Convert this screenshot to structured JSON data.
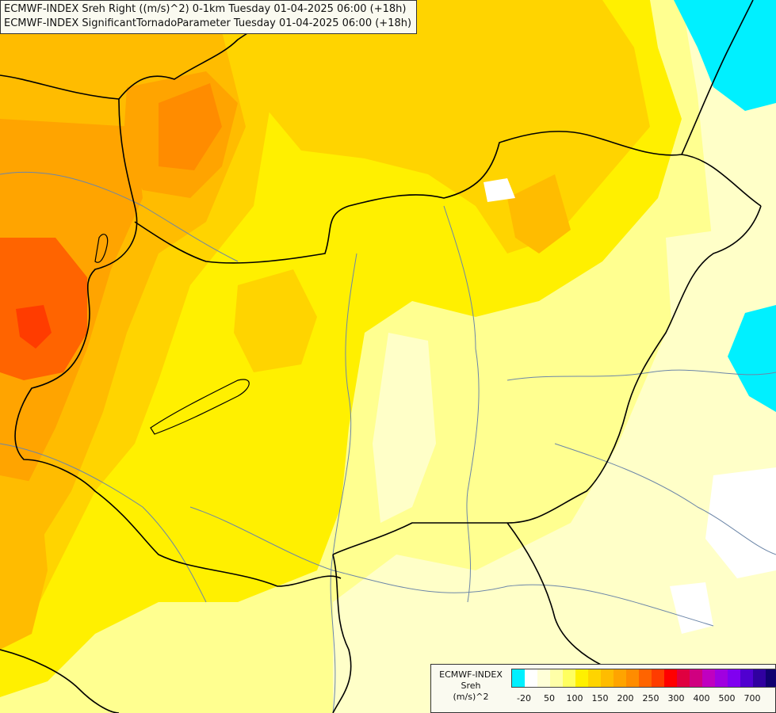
{
  "header": {
    "line1": "ECMWF-INDEX Sreh Right ((m/s)^2) 0-1km Tuesday 01-04-2025 06:00 (+18h)",
    "line2": "ECMWF-INDEX SignificantTornadoParameter Tuesday 01-04-2025 06:00 (+18h)"
  },
  "legend": {
    "source": "ECMWF-INDEX",
    "variable": "Sreh",
    "unit": "(m/s)^2",
    "colors": [
      "#00f0ff",
      "#ffffff",
      "#ffffd8",
      "#ffffa8",
      "#ffff60",
      "#fff000",
      "#ffd400",
      "#ffbc00",
      "#ffa400",
      "#ff8c00",
      "#ff6400",
      "#ff3c00",
      "#ff0000",
      "#e00040",
      "#d00080",
      "#c000c0",
      "#a000e0",
      "#8000f0",
      "#5000d0",
      "#3000a0",
      "#100070"
    ],
    "ticks": [
      {
        "label": "-20",
        "index": 1
      },
      {
        "label": "50",
        "index": 3
      },
      {
        "label": "100",
        "index": 5
      },
      {
        "label": "150",
        "index": 7
      },
      {
        "label": "200",
        "index": 9
      },
      {
        "label": "250",
        "index": 11
      },
      {
        "label": "300",
        "index": 13
      },
      {
        "label": "400",
        "index": 15
      },
      {
        "label": "500",
        "index": 17
      },
      {
        "label": "700",
        "index": 19
      }
    ]
  },
  "map_colors": {
    "background": "#ffffc8",
    "yellow_light": "#ffff90",
    "yellow": "#fff000",
    "yellow_deep": "#ffd400",
    "orange_light": "#ffbc00",
    "orange": "#ffa400",
    "orange_dark": "#ff8c00",
    "red_orange": "#ff6400",
    "red": "#ff3c00",
    "cyan": "#00f0ff",
    "white": "#ffffff"
  }
}
